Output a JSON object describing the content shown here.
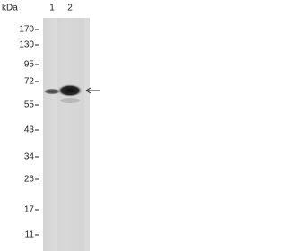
{
  "header": {
    "unit": "kDa",
    "lanes": [
      "1",
      "2"
    ]
  },
  "markers": [
    "170",
    "130",
    "95",
    "72",
    "55",
    "43",
    "34",
    "26",
    "17",
    "11"
  ]
}
